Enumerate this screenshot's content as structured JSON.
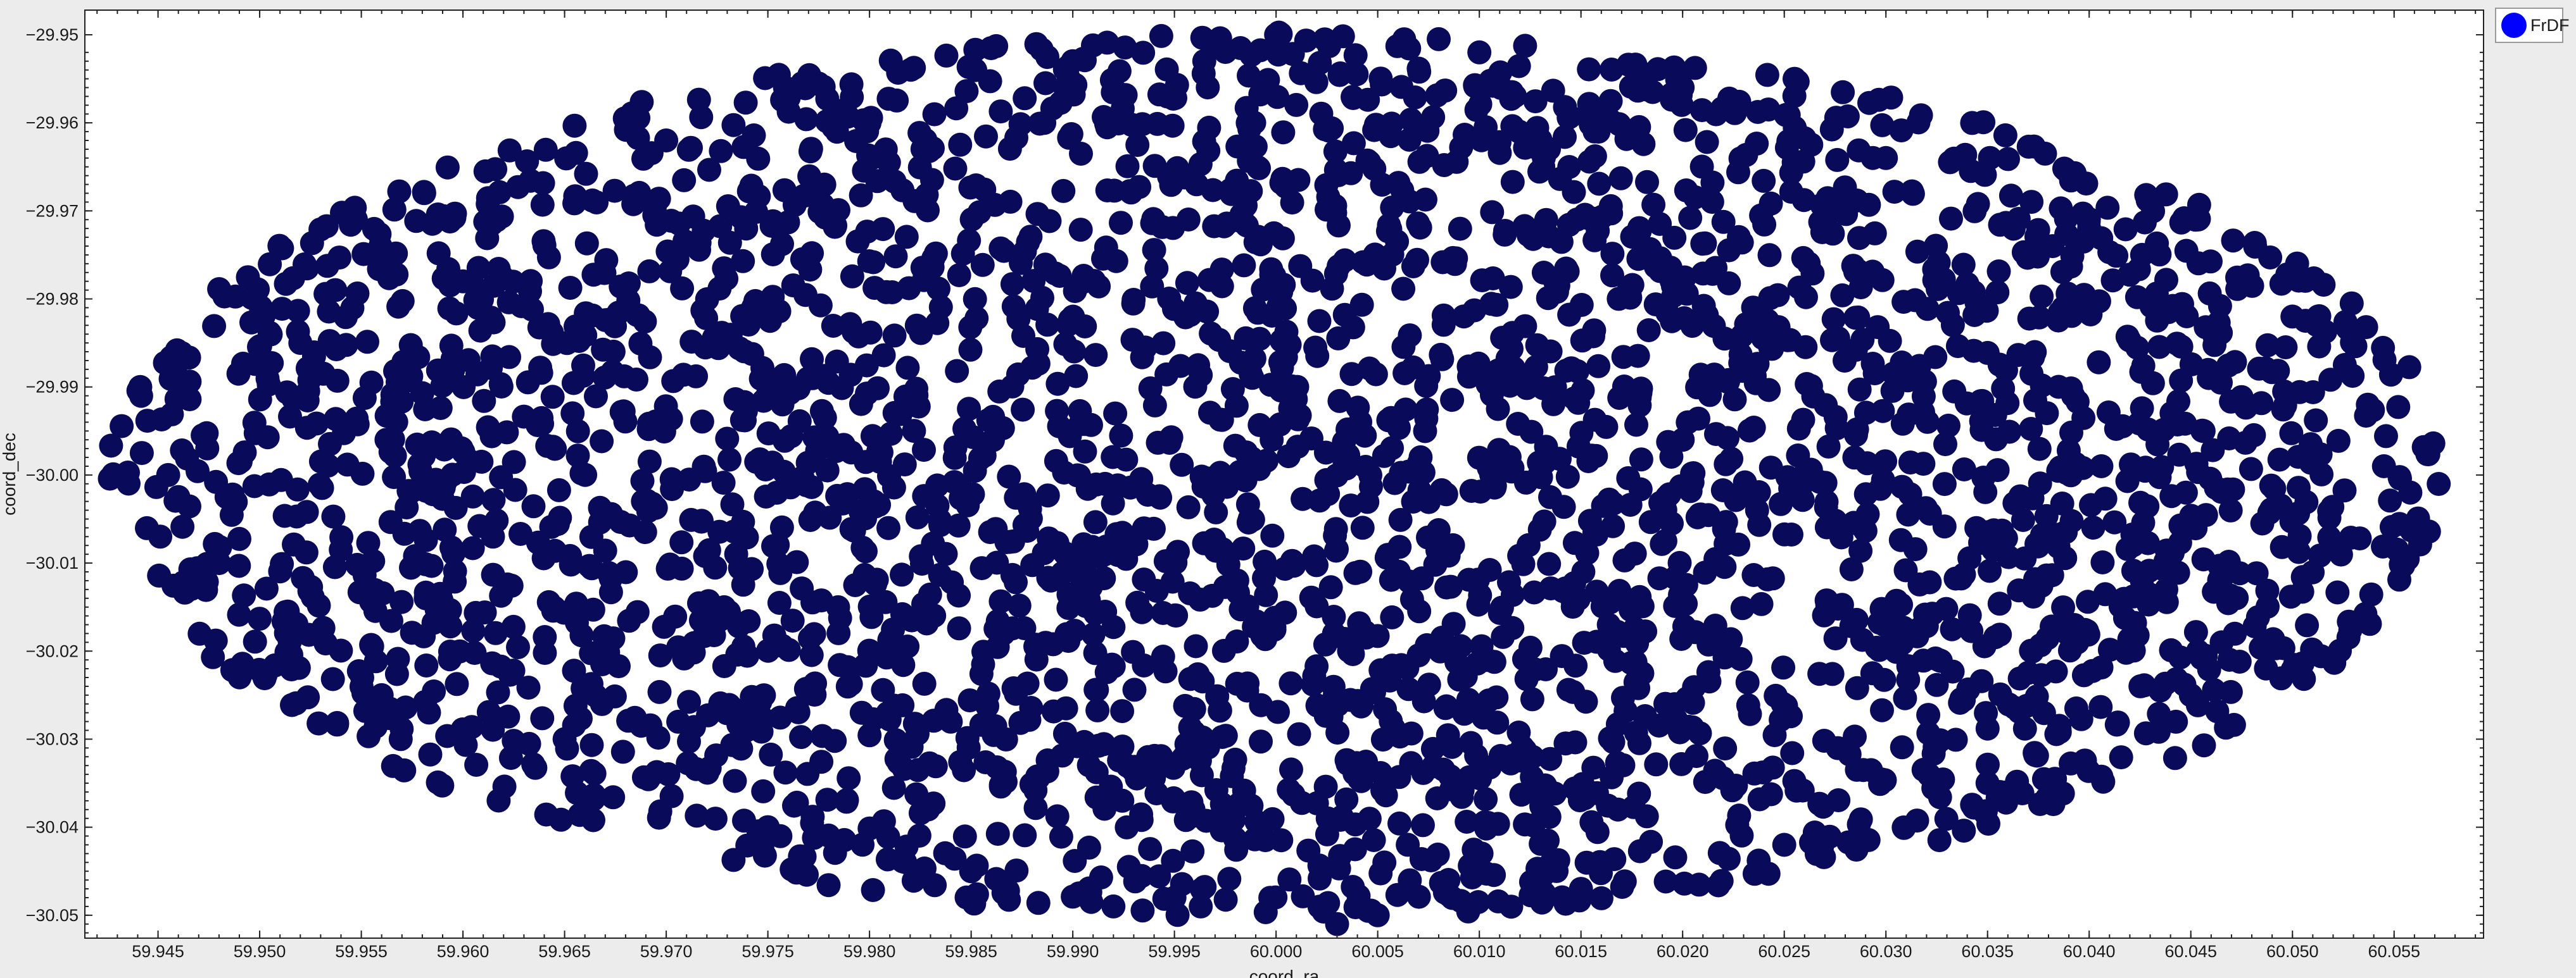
{
  "chart_data": {
    "type": "scatter",
    "title": "",
    "xlabel": "coord_ra",
    "ylabel": "coord_dec",
    "xlim": [
      59.9414,
      60.0594
    ],
    "ylim": [
      -30.0526,
      -29.9472
    ],
    "x_ticks": [
      59.945,
      59.95,
      59.955,
      59.96,
      59.965,
      59.97,
      59.975,
      59.98,
      59.985,
      59.99,
      59.995,
      60.0,
      60.005,
      60.01,
      60.015,
      60.02,
      60.025,
      60.03,
      60.035,
      60.04,
      60.045,
      60.05,
      60.055
    ],
    "x_tick_labels": [
      "59.945",
      "59.950",
      "59.955",
      "59.960",
      "59.965",
      "59.970",
      "59.975",
      "59.980",
      "59.985",
      "59.990",
      "59.995",
      "60.000",
      "60.005",
      "60.010",
      "60.015",
      "60.020",
      "60.025",
      "60.030",
      "60.035",
      "60.040",
      "60.045",
      "60.050",
      "60.055"
    ],
    "y_ticks": [
      -29.95,
      -29.96,
      -29.97,
      -29.98,
      -29.99,
      -30.0,
      -30.01,
      -30.02,
      -30.03,
      -30.04,
      -30.05
    ],
    "y_tick_labels": [
      "−29.95",
      "−29.96",
      "−29.97",
      "−29.98",
      "−29.99",
      "−30.00",
      "−30.01",
      "−30.02",
      "−30.03",
      "−30.04",
      "−30.05"
    ],
    "grid": false,
    "legend_position": "outside-top-right",
    "marker": "filled-circle",
    "series": [
      {
        "name": "FrDF",
        "legend_color": "#0000ff",
        "point_color": "#0a0a5a",
        "distribution": {
          "shape": "ellipse",
          "center": [
            60.0,
            -30.0
          ],
          "ra_half_width": 0.0575,
          "dec_half_height": 0.0505,
          "approx_point_count": 3400
        },
        "x": [
          59.9442,
          59.9455,
          59.946,
          59.948,
          59.952,
          59.956,
          59.96,
          59.965,
          59.97,
          59.975,
          59.98,
          59.985,
          59.99,
          59.995,
          60.0,
          60.005,
          60.01,
          60.015,
          60.02,
          60.025,
          60.03,
          60.035,
          60.04,
          60.045,
          60.05,
          60.0545,
          60.0558,
          59.997,
          60.003,
          59.992,
          60.008
        ],
        "y": [
          -29.9975,
          -30.0,
          -30.0025,
          -30.01,
          -29.985,
          -30.025,
          -29.978,
          -30.03,
          -29.962,
          -30.04,
          -29.96,
          -30.045,
          -29.953,
          -30.048,
          -29.95,
          -30.05,
          -29.952,
          -30.047,
          -29.956,
          -30.042,
          -29.964,
          -30.035,
          -29.972,
          -30.025,
          -29.982,
          -29.999,
          -30.002,
          -29.951,
          -30.051,
          -30.049,
          -29.9505
        ]
      }
    ]
  }
}
